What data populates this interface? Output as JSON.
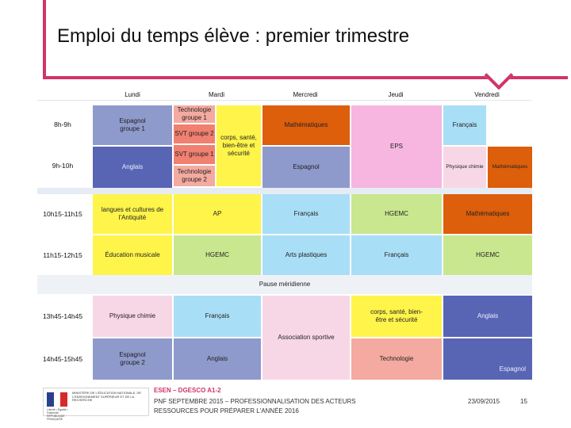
{
  "title": "Emploi du temps élève : premier trimestre",
  "timetable": {
    "days": [
      "Lundi",
      "Mardi",
      "Mercredi",
      "Jeudi",
      "Vendredi"
    ],
    "times": [
      "8h-9h",
      "9h-10h",
      "10h15-11h15",
      "11h15-12h15",
      "13h45-14h45",
      "14h45-15h45"
    ],
    "lunch": "Pause méridienne",
    "cells": {
      "mon_1": "Espagnol groupe 1",
      "mon_2": "Anglais",
      "mon_3": "langues et cultures de l'Antiquité",
      "mon_4": "Éducation musicale",
      "mon_5": "Physique chimie",
      "mon_6": "Espagnol groupe 2",
      "tue_tech1": "Technologie groupe 1",
      "tue_svt2": "SVT groupe 2",
      "tue_svt1": "SVT groupe 1",
      "tue_tech2": "Technologie groupe 2",
      "tue_corps": "corps, santé, bien-être et sécurité",
      "tue_3": "AP",
      "tue_4": "HGEMC",
      "tue_5": "Français",
      "tue_6": "Anglais",
      "wed_1": "Mathématiques",
      "wed_2": "Espagnol",
      "wed_3": "Français",
      "wed_4": "Arts plastiques",
      "wed_pm": "Association sportive",
      "thu_1": "EPS",
      "thu_3": "HGEMC",
      "thu_4": "Français",
      "thu_5": "corps, santé, bien-être et sécurité",
      "thu_6": "Technologie",
      "fri_1": "Français",
      "fri_2a": "Physique chimie",
      "fri_2b": "Mathématiques",
      "fri_3": "Mathématiques",
      "fri_4": "HGEMC",
      "fri_5": "Anglais",
      "fri_6": "Espagnol"
    }
  },
  "footer": {
    "logo_ministry": "MINISTÈRE DE L'ÉDUCATION NATIONALE, DE L'ENSEIGNEMENT SUPÉRIEUR ET DE LA RECHERCHE",
    "logo_motto": "Liberté • Égalité • Fraternité RÉPUBLIQUE FRANÇAISE",
    "org": "ESEN – DGESCO A1-2",
    "line1": "PNF SEPTEMBRE 2015 – PROFESSIONNALISATION DES ACTEURS",
    "line2": "RESSOURCES POUR PRÉPARER L'ANNÉE 2016",
    "date": "23/09/2015",
    "page": "15"
  },
  "colors": {
    "accent": "#d1346a",
    "lightBlue": "#a9def7",
    "indigo": "#5865b4",
    "periwinkle": "#8f9acc",
    "pink": "#f6b6df",
    "yellow": "#fff44a",
    "orange": "#dd5e0b",
    "green": "#c9e78e",
    "salmon": "#f4aaa0",
    "lightPink": "#f7d7e6"
  }
}
